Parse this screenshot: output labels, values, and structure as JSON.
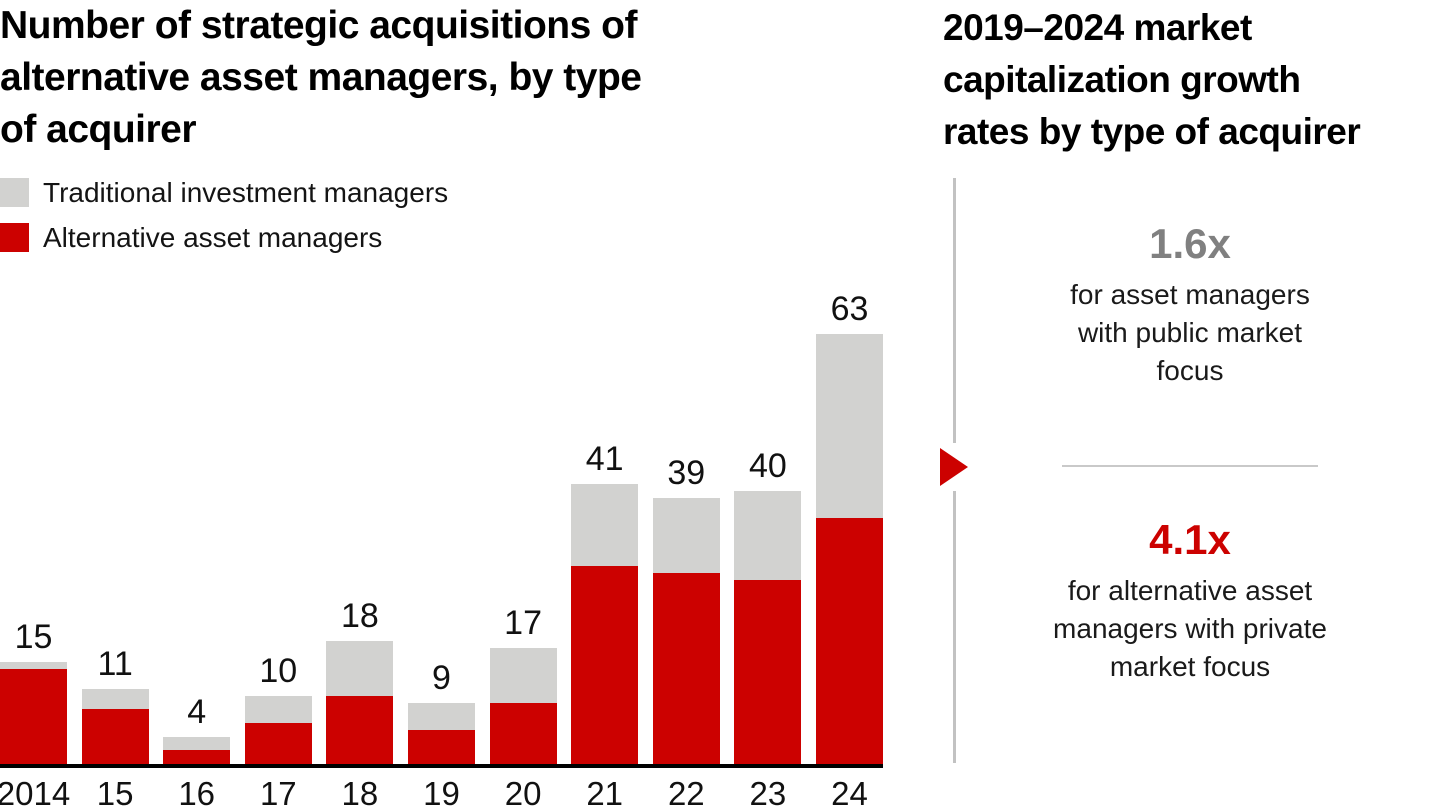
{
  "left_panel": {
    "title": "Number of strategic acquisitions of\nalternative asset managers, by type\nof acquirer",
    "legend": [
      {
        "label": "Traditional investment managers",
        "color": "#d2d2d0"
      },
      {
        "label": "Alternative asset managers",
        "color": "#cc0100"
      }
    ]
  },
  "chart_data": {
    "type": "bar",
    "stacked": true,
    "title": "Number of strategic acquisitions of alternative asset managers, by type of acquirer",
    "categories": [
      "2014",
      "15",
      "16",
      "17",
      "18",
      "19",
      "20",
      "21",
      "22",
      "23",
      "24"
    ],
    "series": [
      {
        "name": "Alternative asset managers",
        "color": "#cc0100",
        "values": [
          14,
          8,
          2,
          6,
          10,
          5,
          9,
          29,
          28,
          27,
          36
        ]
      },
      {
        "name": "Traditional investment managers",
        "color": "#d2d2d0",
        "values": [
          1,
          3,
          2,
          4,
          8,
          4,
          8,
          12,
          11,
          13,
          27
        ]
      }
    ],
    "totals": [
      15,
      11,
      4,
      10,
      18,
      9,
      17,
      41,
      39,
      40,
      63
    ],
    "xlabel": "",
    "ylabel": "",
    "ylim": [
      0,
      66
    ],
    "gridlines": false,
    "value_labels": "totals shown above each bar",
    "legend_position": "top-left"
  },
  "right_panel": {
    "title": "2019–2024 market\ncapitalization growth\nrates by type of acquirer",
    "stats": [
      {
        "value": "1.6x",
        "value_color": "#808080",
        "description": "for asset managers\nwith public market\nfocus"
      },
      {
        "value": "4.1x",
        "value_color": "#cc0100",
        "description": "for alternative asset\nmanagers with private\nmarket focus"
      }
    ]
  },
  "colors": {
    "red": "#cc0100",
    "gray_bar": "#d2d2d0",
    "gray_text": "#808080",
    "axis": "#000000",
    "divider": "#c9c9c9",
    "background": "#ffffff"
  }
}
